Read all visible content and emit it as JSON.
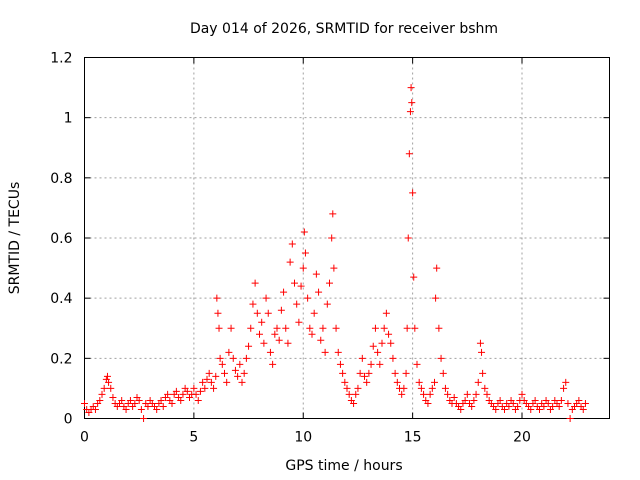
{
  "chart_data": {
    "type": "scatter",
    "title": "Day 014 of 2026, SRMTID for receiver bshm",
    "xlabel": "GPS time / hours",
    "ylabel": "SRMTID / TECUs",
    "xlim": [
      0,
      24
    ],
    "ylim": [
      0,
      1.2
    ],
    "xticks": [
      0,
      5,
      10,
      15,
      20
    ],
    "xtick_labels": [
      "0",
      "5",
      "10",
      "15",
      "20"
    ],
    "yticks": [
      0,
      0.2,
      0.4,
      0.6,
      0.8,
      1.0,
      1.2
    ],
    "ytick_labels": [
      "0",
      "0.2",
      "0.4",
      "0.6",
      "0.8",
      "1",
      "1.2"
    ],
    "grid": true,
    "marker": "+",
    "color": "#ff0000",
    "series": [
      {
        "name": "SRMTID",
        "points": [
          [
            0.0,
            0.05
          ],
          [
            0.1,
            0.03
          ],
          [
            0.2,
            0.02
          ],
          [
            0.3,
            0.03
          ],
          [
            0.4,
            0.04
          ],
          [
            0.5,
            0.03
          ],
          [
            0.6,
            0.05
          ],
          [
            0.7,
            0.06
          ],
          [
            0.8,
            0.08
          ],
          [
            0.9,
            0.1
          ],
          [
            1.0,
            0.13
          ],
          [
            1.05,
            0.14
          ],
          [
            1.1,
            0.12
          ],
          [
            1.2,
            0.1
          ],
          [
            1.3,
            0.07
          ],
          [
            1.4,
            0.05
          ],
          [
            1.5,
            0.04
          ],
          [
            1.6,
            0.05
          ],
          [
            1.7,
            0.06
          ],
          [
            1.8,
            0.04
          ],
          [
            1.9,
            0.03
          ],
          [
            2.0,
            0.05
          ],
          [
            2.1,
            0.06
          ],
          [
            2.2,
            0.04
          ],
          [
            2.3,
            0.05
          ],
          [
            2.4,
            0.07
          ],
          [
            2.5,
            0.06
          ],
          [
            2.6,
            0.03
          ],
          [
            2.7,
            0.0
          ],
          [
            2.8,
            0.05
          ],
          [
            2.9,
            0.04
          ],
          [
            3.0,
            0.06
          ],
          [
            3.1,
            0.05
          ],
          [
            3.2,
            0.04
          ],
          [
            3.3,
            0.03
          ],
          [
            3.4,
            0.05
          ],
          [
            3.5,
            0.06
          ],
          [
            3.6,
            0.04
          ],
          [
            3.7,
            0.07
          ],
          [
            3.8,
            0.08
          ],
          [
            3.9,
            0.06
          ],
          [
            4.0,
            0.05
          ],
          [
            4.1,
            0.08
          ],
          [
            4.2,
            0.09
          ],
          [
            4.3,
            0.07
          ],
          [
            4.4,
            0.06
          ],
          [
            4.5,
            0.08
          ],
          [
            4.6,
            0.1
          ],
          [
            4.7,
            0.09
          ],
          [
            4.8,
            0.07
          ],
          [
            4.9,
            0.08
          ],
          [
            5.0,
            0.1
          ],
          [
            5.1,
            0.08
          ],
          [
            5.2,
            0.06
          ],
          [
            5.3,
            0.09
          ],
          [
            5.4,
            0.12
          ],
          [
            5.5,
            0.1
          ],
          [
            5.6,
            0.13
          ],
          [
            5.7,
            0.15
          ],
          [
            5.8,
            0.12
          ],
          [
            5.9,
            0.1
          ],
          [
            6.0,
            0.14
          ],
          [
            6.05,
            0.4
          ],
          [
            6.1,
            0.35
          ],
          [
            6.15,
            0.3
          ],
          [
            6.2,
            0.2
          ],
          [
            6.3,
            0.18
          ],
          [
            6.4,
            0.15
          ],
          [
            6.5,
            0.12
          ],
          [
            6.6,
            0.22
          ],
          [
            6.7,
            0.3
          ],
          [
            6.8,
            0.2
          ],
          [
            6.9,
            0.16
          ],
          [
            7.0,
            0.14
          ],
          [
            7.1,
            0.18
          ],
          [
            7.2,
            0.12
          ],
          [
            7.3,
            0.15
          ],
          [
            7.4,
            0.2
          ],
          [
            7.5,
            0.24
          ],
          [
            7.6,
            0.3
          ],
          [
            7.7,
            0.38
          ],
          [
            7.8,
            0.45
          ],
          [
            7.9,
            0.35
          ],
          [
            8.0,
            0.28
          ],
          [
            8.1,
            0.32
          ],
          [
            8.2,
            0.25
          ],
          [
            8.3,
            0.4
          ],
          [
            8.4,
            0.35
          ],
          [
            8.5,
            0.22
          ],
          [
            8.6,
            0.18
          ],
          [
            8.7,
            0.28
          ],
          [
            8.8,
            0.3
          ],
          [
            8.9,
            0.26
          ],
          [
            9.0,
            0.36
          ],
          [
            9.1,
            0.42
          ],
          [
            9.2,
            0.3
          ],
          [
            9.3,
            0.25
          ],
          [
            9.4,
            0.52
          ],
          [
            9.5,
            0.58
          ],
          [
            9.6,
            0.45
          ],
          [
            9.7,
            0.38
          ],
          [
            9.8,
            0.32
          ],
          [
            9.9,
            0.44
          ],
          [
            10.0,
            0.5
          ],
          [
            10.05,
            0.62
          ],
          [
            10.1,
            0.55
          ],
          [
            10.2,
            0.4
          ],
          [
            10.3,
            0.3
          ],
          [
            10.4,
            0.28
          ],
          [
            10.5,
            0.35
          ],
          [
            10.6,
            0.48
          ],
          [
            10.7,
            0.42
          ],
          [
            10.8,
            0.26
          ],
          [
            10.9,
            0.3
          ],
          [
            11.0,
            0.22
          ],
          [
            11.1,
            0.38
          ],
          [
            11.2,
            0.45
          ],
          [
            11.3,
            0.6
          ],
          [
            11.35,
            0.68
          ],
          [
            11.4,
            0.5
          ],
          [
            11.5,
            0.3
          ],
          [
            11.6,
            0.22
          ],
          [
            11.7,
            0.18
          ],
          [
            11.8,
            0.15
          ],
          [
            11.9,
            0.12
          ],
          [
            12.0,
            0.1
          ],
          [
            12.1,
            0.08
          ],
          [
            12.2,
            0.06
          ],
          [
            12.3,
            0.05
          ],
          [
            12.4,
            0.08
          ],
          [
            12.5,
            0.1
          ],
          [
            12.6,
            0.15
          ],
          [
            12.7,
            0.2
          ],
          [
            12.8,
            0.14
          ],
          [
            12.9,
            0.12
          ],
          [
            13.0,
            0.15
          ],
          [
            13.1,
            0.18
          ],
          [
            13.2,
            0.24
          ],
          [
            13.3,
            0.3
          ],
          [
            13.4,
            0.22
          ],
          [
            13.5,
            0.18
          ],
          [
            13.6,
            0.25
          ],
          [
            13.7,
            0.3
          ],
          [
            13.8,
            0.35
          ],
          [
            13.9,
            0.28
          ],
          [
            14.0,
            0.25
          ],
          [
            14.1,
            0.2
          ],
          [
            14.2,
            0.15
          ],
          [
            14.3,
            0.12
          ],
          [
            14.4,
            0.1
          ],
          [
            14.5,
            0.08
          ],
          [
            14.6,
            0.1
          ],
          [
            14.7,
            0.15
          ],
          [
            14.75,
            0.3
          ],
          [
            14.8,
            0.6
          ],
          [
            14.85,
            0.88
          ],
          [
            14.9,
            1.02
          ],
          [
            14.93,
            1.1
          ],
          [
            14.96,
            1.05
          ],
          [
            15.0,
            0.75
          ],
          [
            15.05,
            0.47
          ],
          [
            15.1,
            0.3
          ],
          [
            15.2,
            0.18
          ],
          [
            15.3,
            0.12
          ],
          [
            15.4,
            0.1
          ],
          [
            15.5,
            0.08
          ],
          [
            15.6,
            0.06
          ],
          [
            15.7,
            0.05
          ],
          [
            15.8,
            0.08
          ],
          [
            15.9,
            0.1
          ],
          [
            16.0,
            0.12
          ],
          [
            16.05,
            0.4
          ],
          [
            16.1,
            0.5
          ],
          [
            16.2,
            0.3
          ],
          [
            16.3,
            0.2
          ],
          [
            16.4,
            0.15
          ],
          [
            16.5,
            0.1
          ],
          [
            16.6,
            0.08
          ],
          [
            16.7,
            0.06
          ],
          [
            16.8,
            0.05
          ],
          [
            16.9,
            0.07
          ],
          [
            17.0,
            0.05
          ],
          [
            17.1,
            0.04
          ],
          [
            17.2,
            0.03
          ],
          [
            17.3,
            0.05
          ],
          [
            17.4,
            0.06
          ],
          [
            17.5,
            0.08
          ],
          [
            17.6,
            0.05
          ],
          [
            17.7,
            0.04
          ],
          [
            17.8,
            0.06
          ],
          [
            17.9,
            0.08
          ],
          [
            18.0,
            0.12
          ],
          [
            18.1,
            0.25
          ],
          [
            18.15,
            0.22
          ],
          [
            18.2,
            0.15
          ],
          [
            18.3,
            0.1
          ],
          [
            18.4,
            0.08
          ],
          [
            18.5,
            0.06
          ],
          [
            18.6,
            0.05
          ],
          [
            18.7,
            0.04
          ],
          [
            18.8,
            0.03
          ],
          [
            18.9,
            0.05
          ],
          [
            19.0,
            0.06
          ],
          [
            19.1,
            0.04
          ],
          [
            19.2,
            0.03
          ],
          [
            19.3,
            0.05
          ],
          [
            19.4,
            0.04
          ],
          [
            19.5,
            0.06
          ],
          [
            19.6,
            0.05
          ],
          [
            19.7,
            0.03
          ],
          [
            19.8,
            0.04
          ],
          [
            19.9,
            0.06
          ],
          [
            20.0,
            0.08
          ],
          [
            20.1,
            0.06
          ],
          [
            20.2,
            0.05
          ],
          [
            20.3,
            0.04
          ],
          [
            20.4,
            0.03
          ],
          [
            20.5,
            0.05
          ],
          [
            20.6,
            0.06
          ],
          [
            20.7,
            0.04
          ],
          [
            20.8,
            0.03
          ],
          [
            20.9,
            0.05
          ],
          [
            21.0,
            0.04
          ],
          [
            21.1,
            0.06
          ],
          [
            21.2,
            0.05
          ],
          [
            21.3,
            0.03
          ],
          [
            21.4,
            0.04
          ],
          [
            21.5,
            0.06
          ],
          [
            21.6,
            0.05
          ],
          [
            21.7,
            0.04
          ],
          [
            21.8,
            0.06
          ],
          [
            21.9,
            0.1
          ],
          [
            22.0,
            0.12
          ],
          [
            22.1,
            0.05
          ],
          [
            22.2,
            0.0
          ],
          [
            22.3,
            0.03
          ],
          [
            22.4,
            0.04
          ],
          [
            22.5,
            0.05
          ],
          [
            22.6,
            0.06
          ],
          [
            22.7,
            0.04
          ],
          [
            22.8,
            0.03
          ],
          [
            22.9,
            0.05
          ]
        ]
      }
    ]
  }
}
